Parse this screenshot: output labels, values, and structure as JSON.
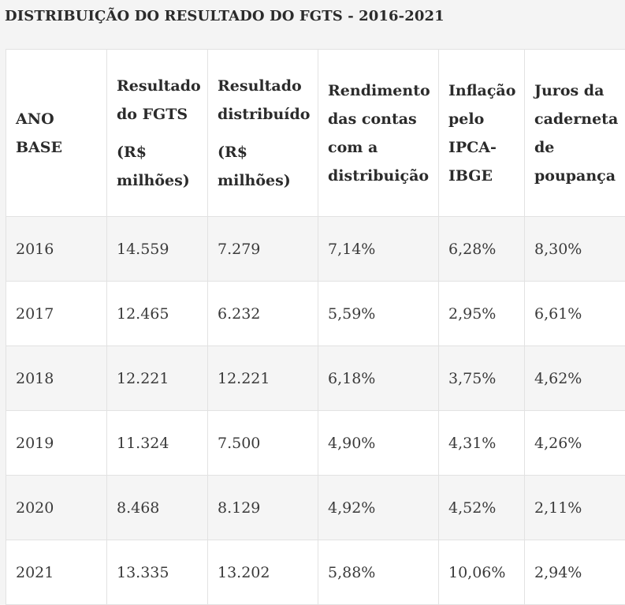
{
  "title": "DISTRIBUIÇÃO DO RESULTADO DO FGTS - 2016-2021",
  "columns": [
    {
      "label": "ANO\nBASE",
      "unit": ""
    },
    {
      "label": "Resultado\ndo FGTS",
      "unit": "(R$\nmilhões)"
    },
    {
      "label": "Resultado\ndistribuído",
      "unit": "(R$\nmilhões)"
    },
    {
      "label": "Rendimento\ndas contas\ncom a\ndistribuição",
      "unit": ""
    },
    {
      "label": "Inflação\npelo\nIPCA-\nIBGE",
      "unit": ""
    },
    {
      "label": "Juros da\ncaderneta\nde\npoupança",
      "unit": ""
    }
  ],
  "rows": [
    [
      "2016",
      "14.559",
      "7.279",
      "7,14%",
      "6,28%",
      "8,30%"
    ],
    [
      "2017",
      "12.465",
      "6.232",
      "5,59%",
      "2,95%",
      "6,61%"
    ],
    [
      "2018",
      "12.221",
      "12.221",
      "6,18%",
      "3,75%",
      "4,62%"
    ],
    [
      "2019",
      "11.324",
      "7.500",
      "4,90%",
      "4,31%",
      "4,26%"
    ],
    [
      "2020",
      "8.468",
      "8.129",
      "4,92%",
      "4,52%",
      "2,11%"
    ],
    [
      "2021",
      "13.335",
      "13.202",
      "5,88%",
      "10,06%",
      "2,94%"
    ]
  ]
}
